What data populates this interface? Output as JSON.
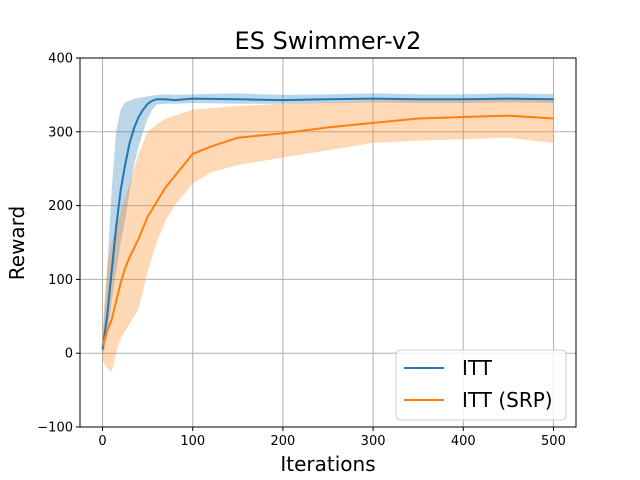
{
  "chart_data": {
    "type": "line",
    "title": "ES Swimmer-v2",
    "xlabel": "Iterations",
    "ylabel": "Reward",
    "xlim": [
      -25,
      525
    ],
    "ylim": [
      -100,
      400
    ],
    "xticks": [
      0,
      100,
      200,
      300,
      400,
      500
    ],
    "yticks": [
      -100,
      0,
      100,
      200,
      300,
      400
    ],
    "xtick_labels": [
      "0",
      "100",
      "200",
      "300",
      "400",
      "500"
    ],
    "ytick_labels": [
      "−100",
      "0",
      "100",
      "200",
      "300",
      "400"
    ],
    "grid": true,
    "legend_position": "bottom-right",
    "series": [
      {
        "name": "ITT",
        "color": "#1f77b4",
        "x": [
          0,
          5,
          10,
          15,
          20,
          25,
          30,
          35,
          40,
          45,
          50,
          55,
          60,
          70,
          80,
          100,
          150,
          200,
          250,
          300,
          350,
          400,
          450,
          500
        ],
        "mean": [
          5,
          50,
          110,
          170,
          220,
          255,
          285,
          305,
          320,
          330,
          338,
          342,
          344,
          344,
          343,
          345,
          344,
          343,
          344,
          345,
          344,
          344,
          345,
          344
        ],
        "lower": [
          -5,
          20,
          70,
          110,
          150,
          180,
          220,
          255,
          280,
          300,
          318,
          330,
          337,
          338,
          338,
          339,
          338,
          338,
          339,
          340,
          339,
          339,
          340,
          339
        ],
        "upper": [
          15,
          110,
          220,
          300,
          330,
          340,
          342,
          345,
          346,
          347,
          348,
          349,
          350,
          351,
          350,
          351,
          352,
          350,
          351,
          352,
          351,
          351,
          352,
          351
        ]
      },
      {
        "name": "ITT (SRP)",
        "color": "#ff7f0e",
        "x": [
          0,
          5,
          10,
          15,
          20,
          25,
          30,
          40,
          50,
          60,
          70,
          80,
          90,
          100,
          120,
          150,
          200,
          250,
          300,
          350,
          400,
          450,
          500
        ],
        "mean": [
          10,
          30,
          45,
          70,
          95,
          115,
          130,
          155,
          185,
          205,
          225,
          240,
          255,
          270,
          280,
          292,
          298,
          306,
          312,
          318,
          320,
          322,
          318
        ],
        "lower": [
          -10,
          -20,
          -25,
          0,
          20,
          30,
          40,
          60,
          110,
          150,
          180,
          200,
          215,
          230,
          245,
          255,
          265,
          275,
          285,
          288,
          290,
          292,
          285
        ],
        "upper": [
          30,
          120,
          150,
          170,
          190,
          210,
          230,
          270,
          300,
          310,
          318,
          322,
          326,
          330,
          332,
          335,
          338,
          340,
          342,
          344,
          344,
          345,
          344
        ]
      }
    ]
  }
}
